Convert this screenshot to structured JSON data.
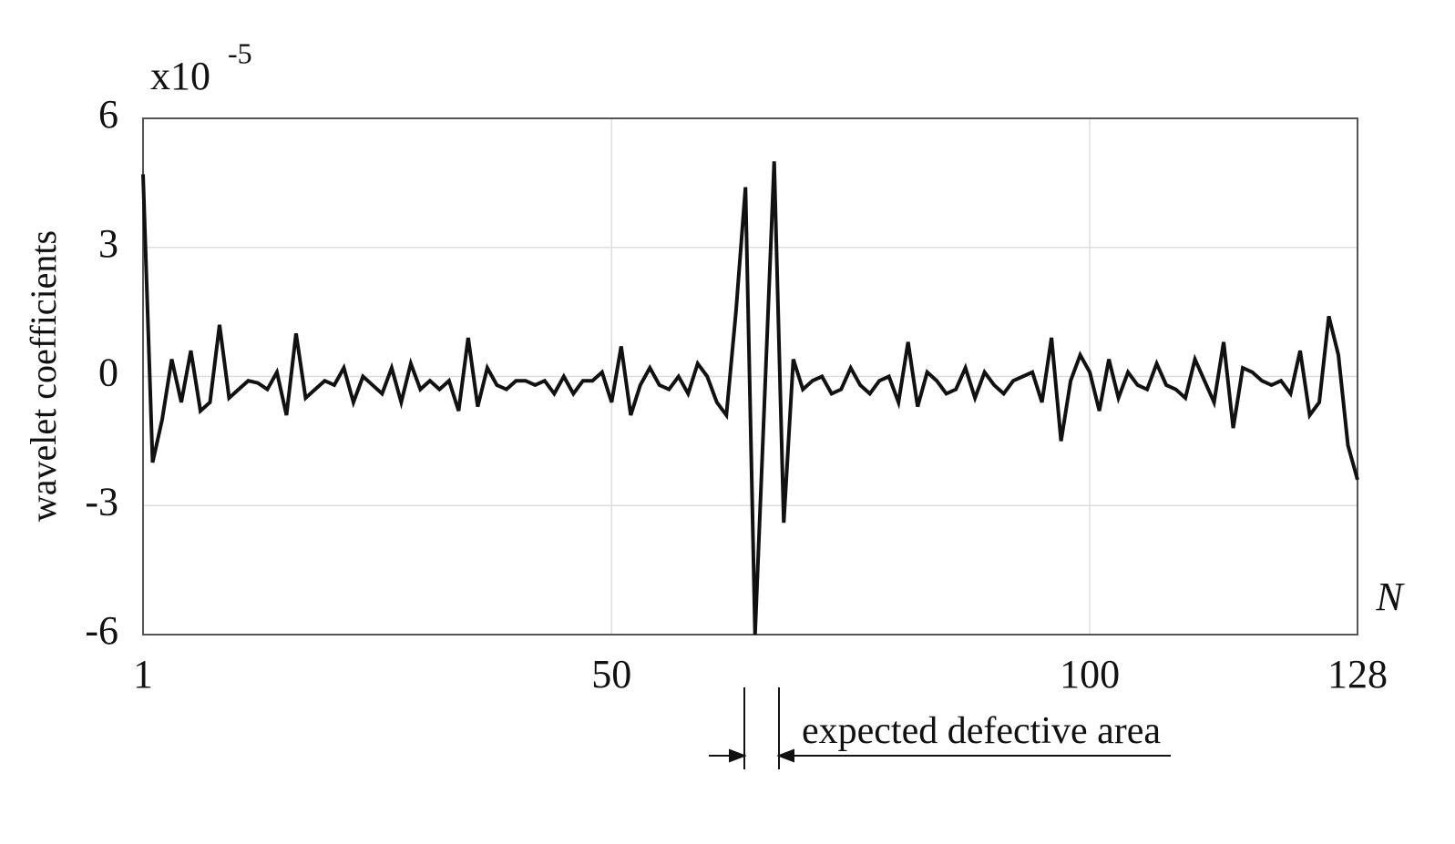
{
  "chart_data": {
    "type": "line",
    "y_label": "wavelet coefficients",
    "x_label": "N",
    "y_scale_label": "x10",
    "y_scale_exponent": "-5",
    "annotation": "expected defective area",
    "color": "#111111",
    "grid": true,
    "x": [
      1,
      2,
      3,
      4,
      5,
      6,
      7,
      8,
      9,
      10,
      11,
      12,
      13,
      14,
      15,
      16,
      17,
      18,
      19,
      20,
      21,
      22,
      23,
      24,
      25,
      26,
      27,
      28,
      29,
      30,
      31,
      32,
      33,
      34,
      35,
      36,
      37,
      38,
      39,
      40,
      41,
      42,
      43,
      44,
      45,
      46,
      47,
      48,
      49,
      50,
      51,
      52,
      53,
      54,
      55,
      56,
      57,
      58,
      59,
      60,
      61,
      62,
      63,
      64,
      65,
      66,
      67,
      68,
      69,
      70,
      71,
      72,
      73,
      74,
      75,
      76,
      77,
      78,
      79,
      80,
      81,
      82,
      83,
      84,
      85,
      86,
      87,
      88,
      89,
      90,
      91,
      92,
      93,
      94,
      95,
      96,
      97,
      98,
      99,
      100,
      101,
      102,
      103,
      104,
      105,
      106,
      107,
      108,
      109,
      110,
      111,
      112,
      113,
      114,
      115,
      116,
      117,
      118,
      119,
      120,
      121,
      122,
      123,
      124,
      125,
      126,
      127,
      128
    ],
    "values": [
      4.7,
      -2.0,
      -1.0,
      0.4,
      -0.6,
      0.6,
      -0.8,
      -0.6,
      1.2,
      -0.5,
      -0.3,
      -0.1,
      -0.15,
      -0.3,
      0.1,
      -0.9,
      1.0,
      -0.5,
      -0.3,
      -0.1,
      -0.2,
      0.2,
      -0.6,
      0.0,
      -0.2,
      -0.4,
      0.2,
      -0.6,
      0.3,
      -0.3,
      -0.1,
      -0.3,
      -0.1,
      -0.8,
      0.9,
      -0.7,
      0.2,
      -0.2,
      -0.3,
      -0.1,
      -0.1,
      -0.2,
      -0.1,
      -0.4,
      0.0,
      -0.4,
      -0.1,
      -0.1,
      0.1,
      -0.6,
      0.7,
      -0.9,
      -0.2,
      0.2,
      -0.2,
      -0.3,
      0.0,
      -0.4,
      0.3,
      0.0,
      -0.6,
      -0.9,
      1.5,
      4.4,
      -6.0,
      -0.5,
      5.0,
      -3.4,
      0.4,
      -0.3,
      -0.1,
      0.0,
      -0.4,
      -0.3,
      0.2,
      -0.2,
      -0.4,
      -0.1,
      0.0,
      -0.6,
      0.8,
      -0.7,
      0.1,
      -0.1,
      -0.4,
      -0.3,
      0.2,
      -0.5,
      0.1,
      -0.2,
      -0.4,
      -0.1,
      0.0,
      0.1,
      -0.6,
      0.9,
      -1.5,
      -0.1,
      0.5,
      0.1,
      -0.8,
      0.4,
      -0.5,
      0.1,
      -0.2,
      -0.3,
      0.3,
      -0.2,
      -0.3,
      -0.5,
      0.4,
      -0.1,
      -0.6,
      0.8,
      -1.2,
      0.2,
      0.1,
      -0.1,
      -0.2,
      -0.1,
      -0.4,
      0.6,
      -0.9,
      -0.6,
      1.4,
      0.5,
      -1.6,
      -2.4
    ],
    "xlim": [
      1,
      128
    ],
    "xticks": [
      1,
      50,
      100,
      128
    ],
    "ylim": [
      -6,
      6
    ],
    "yticks": [
      -6,
      -3,
      0,
      3,
      6
    ]
  }
}
